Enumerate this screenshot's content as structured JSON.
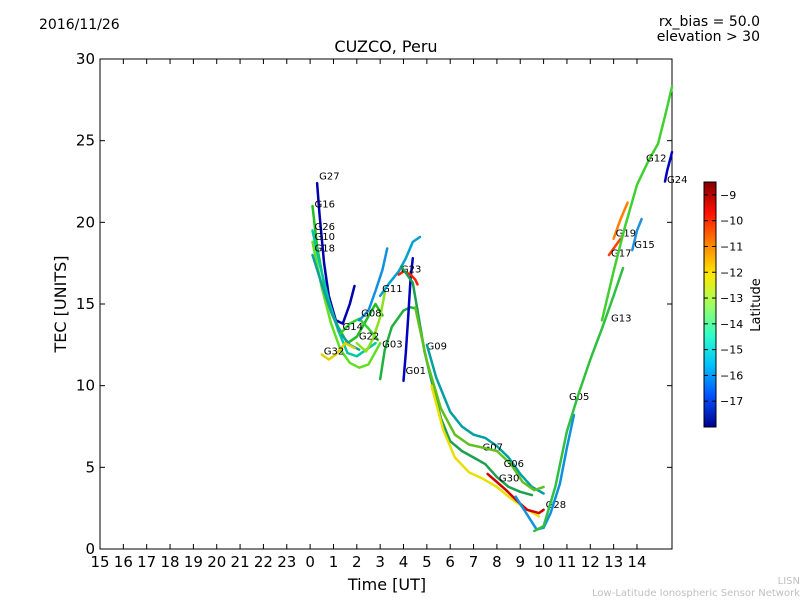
{
  "header": {
    "date": "2016/11/26",
    "params_line1": "rx_bias = 50.0",
    "params_line2": "elevation > 30"
  },
  "footer": {
    "line1": "LISN",
    "line2": "Low-Latitude Ionospheric Sensor Network"
  },
  "chart_data": {
    "type": "line",
    "title": "CUZCO, Peru",
    "xlabel": "Time [UT]",
    "ylabel": "TEC [UNITS]",
    "x_tick_labels": [
      "15",
      "16",
      "17",
      "18",
      "19",
      "20",
      "21",
      "22",
      "23",
      "0",
      "1",
      "2",
      "3",
      "4",
      "5",
      "6",
      "7",
      "8",
      "9",
      "10",
      "11",
      "12",
      "13",
      "14"
    ],
    "xlim": [
      15,
      39.5
    ],
    "ylim": [
      0,
      30
    ],
    "y_ticks": [
      0,
      5,
      10,
      15,
      20,
      25,
      30
    ],
    "grid": false,
    "colorbar": {
      "label": "Latitude",
      "range": [
        -18,
        -8.5
      ],
      "ticks": [
        -9,
        -10,
        -11,
        -12,
        -13,
        -14,
        -15,
        -16,
        -17
      ],
      "colors": [
        "#00008f",
        "#0050ff",
        "#00c0ff",
        "#30ffc8",
        "#a0ff60",
        "#ffe800",
        "#ff8000",
        "#ff1000",
        "#800000"
      ]
    },
    "series": [
      {
        "name": "G27",
        "color": "#0000b0",
        "label_at": [
          24.3,
          22.5
        ],
        "points": [
          [
            24.3,
            22.4
          ],
          [
            24.4,
            20.5
          ],
          [
            24.6,
            17.5
          ],
          [
            24.8,
            15.5
          ],
          [
            25.1,
            14.0
          ],
          [
            25.4,
            13.8
          ],
          [
            25.7,
            15.0
          ],
          [
            25.9,
            16.1
          ]
        ]
      },
      {
        "name": "G16",
        "color": "#20c020",
        "label_at": [
          24.1,
          20.8
        ],
        "points": [
          [
            24.1,
            21.0
          ],
          [
            24.3,
            18.5
          ],
          [
            24.6,
            16.2
          ],
          [
            24.9,
            14.6
          ],
          [
            25.2,
            13.6
          ],
          [
            25.6,
            12.6
          ],
          [
            26.0,
            13.0
          ],
          [
            26.4,
            14.0
          ],
          [
            26.8,
            15.0
          ],
          [
            27.1,
            14.3
          ]
        ]
      },
      {
        "name": "G26",
        "color": "#00c8a0",
        "label_at": [
          24.1,
          19.4
        ],
        "points": [
          [
            24.1,
            19.5
          ],
          [
            24.4,
            17.5
          ],
          [
            24.8,
            15.2
          ],
          [
            25.2,
            13.4
          ],
          [
            25.6,
            12.0
          ],
          [
            26.0,
            11.8
          ],
          [
            26.4,
            12.2
          ],
          [
            26.8,
            12.6
          ]
        ]
      },
      {
        "name": "G10",
        "color": "#60e020",
        "label_at": [
          24.1,
          18.8
        ],
        "points": [
          [
            24.1,
            18.8
          ],
          [
            24.5,
            16.0
          ],
          [
            24.9,
            13.8
          ],
          [
            25.3,
            12.2
          ],
          [
            25.7,
            11.4
          ],
          [
            26.1,
            11.1
          ],
          [
            26.5,
            11.3
          ],
          [
            27.0,
            12.6
          ]
        ]
      },
      {
        "name": "G18",
        "color": "#10a0a0",
        "label_at": [
          24.1,
          18.1
        ],
        "points": [
          [
            24.1,
            18.0
          ],
          [
            24.5,
            16.2
          ],
          [
            24.9,
            14.5
          ],
          [
            25.3,
            13.2
          ],
          [
            25.7,
            12.5
          ],
          [
            26.1,
            12.2
          ]
        ]
      },
      {
        "name": "G32",
        "color": "#e0d000",
        "label_at": [
          24.5,
          11.8
        ],
        "points": [
          [
            24.5,
            11.9
          ],
          [
            24.8,
            11.6
          ],
          [
            25.1,
            11.9
          ],
          [
            25.5,
            12.6
          ],
          [
            25.9,
            12.3
          ]
        ]
      },
      {
        "name": "G14",
        "color": "#30d030",
        "label_at": [
          25.3,
          13.3
        ],
        "points": [
          [
            25.3,
            13.2
          ],
          [
            25.7,
            13.8
          ],
          [
            26.1,
            14.1
          ],
          [
            26.5,
            13.5
          ],
          [
            26.9,
            12.8
          ]
        ]
      },
      {
        "name": "G22",
        "color": "#90e020",
        "label_at": [
          26.0,
          12.7
        ],
        "points": [
          [
            26.0,
            12.6
          ],
          [
            26.4,
            12.1
          ],
          [
            26.7,
            12.9
          ],
          [
            27.0,
            14.2
          ],
          [
            27.2,
            15.7
          ]
        ]
      },
      {
        "name": "G08",
        "color": "#1090e0",
        "label_at": [
          26.1,
          14.1
        ],
        "points": [
          [
            26.1,
            14.0
          ],
          [
            26.5,
            14.6
          ],
          [
            26.8,
            15.8
          ],
          [
            27.1,
            17.1
          ],
          [
            27.3,
            18.4
          ]
        ]
      },
      {
        "name": "G03",
        "color": "#20b040",
        "label_at": [
          27.0,
          12.2
        ],
        "points": [
          [
            27.0,
            10.4
          ],
          [
            27.2,
            12.2
          ],
          [
            27.5,
            13.6
          ],
          [
            27.8,
            14.2
          ],
          [
            28.0,
            14.6
          ],
          [
            28.3,
            14.8
          ],
          [
            28.6,
            14.7
          ]
        ]
      },
      {
        "name": "G01",
        "color": "#0000c0",
        "label_at": [
          28.0,
          10.6
        ],
        "points": [
          [
            28.0,
            10.3
          ],
          [
            28.1,
            12.0
          ],
          [
            28.2,
            14.2
          ],
          [
            28.3,
            16.5
          ],
          [
            28.4,
            17.8
          ]
        ]
      },
      {
        "name": "G11",
        "color": "#00a0d0",
        "label_at": [
          27.0,
          15.6
        ],
        "points": [
          [
            27.0,
            15.5
          ],
          [
            27.4,
            16.3
          ],
          [
            27.8,
            17.0
          ],
          [
            28.1,
            17.8
          ],
          [
            28.4,
            18.8
          ],
          [
            28.7,
            19.1
          ]
        ]
      },
      {
        "name": "G23",
        "color": "#ff2000",
        "label_at": [
          27.8,
          16.8
        ],
        "points": [
          [
            27.8,
            16.8
          ],
          [
            28.0,
            17.0
          ],
          [
            28.3,
            16.8
          ],
          [
            28.5,
            16.5
          ],
          [
            28.6,
            16.2
          ]
        ]
      },
      {
        "name": "G09",
        "color": "#1aa050",
        "label_at": [
          28.9,
          12.1
        ],
        "points": [
          [
            27.9,
            17.3
          ],
          [
            28.4,
            16.3
          ],
          [
            28.9,
            12.1
          ],
          [
            29.2,
            10.3
          ],
          [
            29.6,
            8.0
          ],
          [
            30.0,
            6.6
          ],
          [
            30.5,
            6.0
          ],
          [
            31.0,
            5.6
          ],
          [
            31.5,
            5.2
          ],
          [
            32.0,
            4.4
          ],
          [
            32.5,
            3.8
          ],
          [
            33.0,
            3.5
          ],
          [
            33.5,
            3.3
          ]
        ]
      },
      {
        "name": "G07",
        "color": "#00a0a0",
        "label_at": [
          31.3,
          5.9
        ],
        "points": [
          [
            29.0,
            12.5
          ],
          [
            29.4,
            10.5
          ],
          [
            30.0,
            8.4
          ],
          [
            30.5,
            7.5
          ],
          [
            31.0,
            7.0
          ],
          [
            31.5,
            6.8
          ],
          [
            32.0,
            6.3
          ],
          [
            32.5,
            5.6
          ],
          [
            33.0,
            4.6
          ],
          [
            33.5,
            3.8
          ],
          [
            34.0,
            3.4
          ]
        ]
      },
      {
        "name": "G06",
        "color": "#60c020",
        "label_at": [
          32.2,
          4.9
        ],
        "points": [
          [
            28.5,
            14.8
          ],
          [
            29.0,
            11.5
          ],
          [
            29.6,
            8.6
          ],
          [
            30.2,
            7.0
          ],
          [
            30.8,
            6.4
          ],
          [
            31.4,
            6.2
          ],
          [
            32.0,
            6.0
          ],
          [
            32.6,
            5.2
          ],
          [
            33.1,
            4.1
          ],
          [
            33.6,
            3.6
          ],
          [
            34.0,
            3.8
          ]
        ]
      },
      {
        "name": "G30",
        "color": "#e8e000",
        "label_at": [
          32.0,
          4.0
        ],
        "points": [
          [
            29.2,
            10.0
          ],
          [
            29.7,
            7.3
          ],
          [
            30.2,
            5.6
          ],
          [
            30.8,
            4.7
          ],
          [
            31.4,
            4.3
          ],
          [
            32.0,
            3.8
          ],
          [
            32.6,
            3.1
          ],
          [
            33.2,
            2.5
          ],
          [
            33.8,
            2.0
          ]
        ]
      },
      {
        "name": "G28",
        "color": "#d00000",
        "label_at": [
          34.0,
          2.4
        ],
        "points": [
          [
            31.6,
            4.6
          ],
          [
            32.0,
            4.1
          ],
          [
            32.4,
            3.6
          ],
          [
            32.9,
            2.9
          ],
          [
            33.3,
            2.4
          ],
          [
            33.8,
            2.2
          ],
          [
            34.0,
            2.4
          ]
        ]
      },
      {
        "name": "G05",
        "color": "#1090e0",
        "label_at": [
          35.0,
          9.0
        ],
        "points": [
          [
            32.8,
            3.2
          ],
          [
            33.3,
            2.1
          ],
          [
            33.7,
            1.2
          ],
          [
            34.0,
            1.3
          ],
          [
            34.3,
            2.2
          ],
          [
            34.7,
            4.0
          ],
          [
            35.0,
            6.2
          ],
          [
            35.3,
            8.2
          ]
        ]
      },
      {
        "name": "G13",
        "color": "#30c040",
        "label_at": [
          36.8,
          13.8
        ],
        "points": [
          [
            33.6,
            1.1
          ],
          [
            34.0,
            1.4
          ],
          [
            34.5,
            3.8
          ],
          [
            35.0,
            7.2
          ],
          [
            35.5,
            9.5
          ],
          [
            36.0,
            11.6
          ],
          [
            36.5,
            13.5
          ],
          [
            37.0,
            15.5
          ],
          [
            37.4,
            17.2
          ]
        ]
      },
      {
        "name": "G17",
        "color": "#ff4000",
        "label_at": [
          36.8,
          17.8
        ],
        "points": [
          [
            36.8,
            18.0
          ],
          [
            37.0,
            18.4
          ],
          [
            37.3,
            19.0
          ]
        ]
      },
      {
        "name": "G19",
        "color": "#ff8000",
        "label_at": [
          37.0,
          19.0
        ],
        "points": [
          [
            37.0,
            19.0
          ],
          [
            37.3,
            20.2
          ],
          [
            37.6,
            21.2
          ]
        ]
      },
      {
        "name": "G15",
        "color": "#2090e0",
        "label_at": [
          37.8,
          18.3
        ],
        "points": [
          [
            37.8,
            18.3
          ],
          [
            38.0,
            19.5
          ],
          [
            38.2,
            20.2
          ]
        ]
      },
      {
        "name": "G12",
        "color": "#40d030",
        "label_at": [
          38.3,
          23.6
        ],
        "points": [
          [
            36.5,
            14.0
          ],
          [
            37.0,
            17.0
          ],
          [
            37.5,
            19.8
          ],
          [
            38.0,
            22.3
          ],
          [
            38.5,
            23.8
          ],
          [
            38.9,
            24.8
          ],
          [
            39.2,
            26.5
          ],
          [
            39.5,
            28.3
          ]
        ]
      },
      {
        "name": "G24",
        "color": "#0000c0",
        "label_at": [
          39.2,
          22.3
        ],
        "points": [
          [
            39.2,
            22.5
          ],
          [
            39.3,
            23.2
          ],
          [
            39.45,
            24.0
          ],
          [
            39.5,
            24.3
          ]
        ]
      }
    ]
  }
}
